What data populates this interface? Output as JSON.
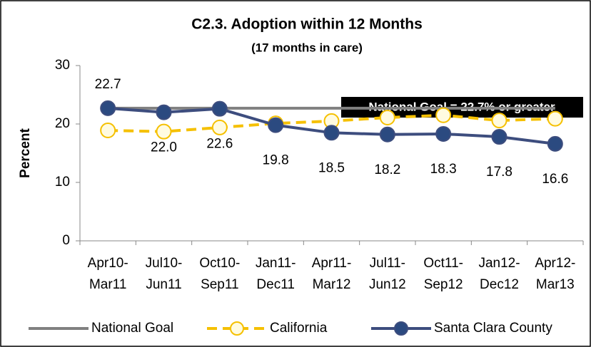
{
  "chart_data": {
    "type": "line",
    "title": "C2.3. Adoption within 12 Months",
    "subtitle": "(17 months in care)",
    "y_label": "Percent",
    "annotation": "National Goal = 22.7% or greater",
    "categories": [
      [
        "Apr10-",
        "Mar11"
      ],
      [
        "Jul10-",
        "Jun11"
      ],
      [
        "Oct10-",
        "Sep11"
      ],
      [
        "Jan11-",
        "Dec11"
      ],
      [
        "Apr11-",
        "Mar12"
      ],
      [
        "Jul11-",
        "Jun12"
      ],
      [
        "Oct11-",
        "Sep12"
      ],
      [
        "Jan12-",
        "Dec12"
      ],
      [
        "Apr12-",
        "Mar13"
      ]
    ],
    "ylim": [
      0,
      30
    ],
    "yticks": [
      0,
      10,
      20,
      30
    ],
    "grid": false,
    "legend": "bottom",
    "series": [
      {
        "name": "National Goal",
        "color": "#808080",
        "dashed": false,
        "marker": false,
        "values": [
          22.7,
          22.7,
          22.7,
          22.7,
          22.7,
          22.7,
          22.7,
          22.7,
          22.7
        ]
      },
      {
        "name": "California",
        "color": "#f5c000",
        "marker_fill": "#fffbe0",
        "dashed": true,
        "marker": true,
        "values": [
          18.9,
          18.7,
          19.4,
          20.1,
          20.5,
          21.1,
          21.5,
          20.6,
          20.9
        ]
      },
      {
        "name": "Santa Clara County",
        "color": "#3d4d7e",
        "marker_fill": "#2b4a80",
        "dashed": false,
        "marker": true,
        "show_labels": true,
        "values": [
          22.7,
          22.0,
          22.6,
          19.8,
          18.5,
          18.2,
          18.3,
          17.8,
          16.6
        ],
        "value_labels": [
          "22.7",
          "22.0",
          "22.6",
          "19.8",
          "18.5",
          "18.2",
          "18.3",
          "17.8",
          "16.6"
        ]
      }
    ]
  }
}
